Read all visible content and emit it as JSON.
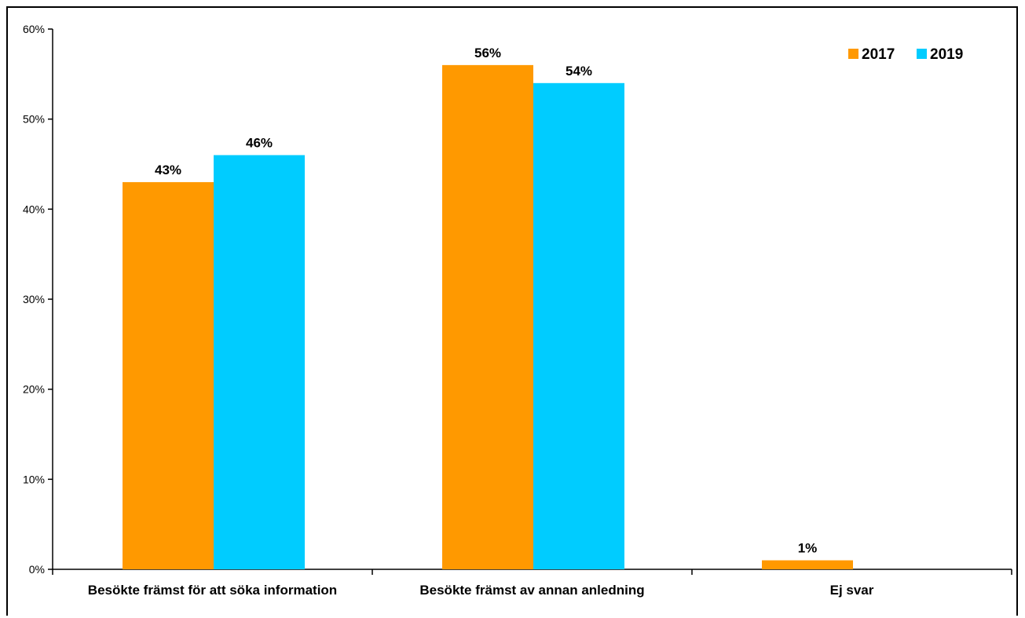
{
  "chart_data": {
    "type": "bar",
    "categories": [
      "Besökte främst för att söka information",
      "Besökte främst av annan anledning",
      "Ej svar"
    ],
    "series": [
      {
        "name": "2017",
        "color": "#FF9900",
        "values": [
          43,
          56,
          1
        ],
        "labels": [
          "43%",
          "56%",
          "1%"
        ]
      },
      {
        "name": "2019",
        "color": "#00CCFF",
        "values": [
          46,
          54,
          null
        ],
        "labels": [
          "46%",
          "54%",
          ""
        ]
      }
    ],
    "ylim": [
      0,
      60
    ],
    "yticks": [
      0,
      10,
      20,
      30,
      40,
      50,
      60
    ],
    "ytick_labels": [
      "0%",
      "10%",
      "20%",
      "30%",
      "40%",
      "50%",
      "60%"
    ],
    "xlabel": "",
    "ylabel": "",
    "title": "",
    "grid": false,
    "legend_position": "top-right"
  }
}
